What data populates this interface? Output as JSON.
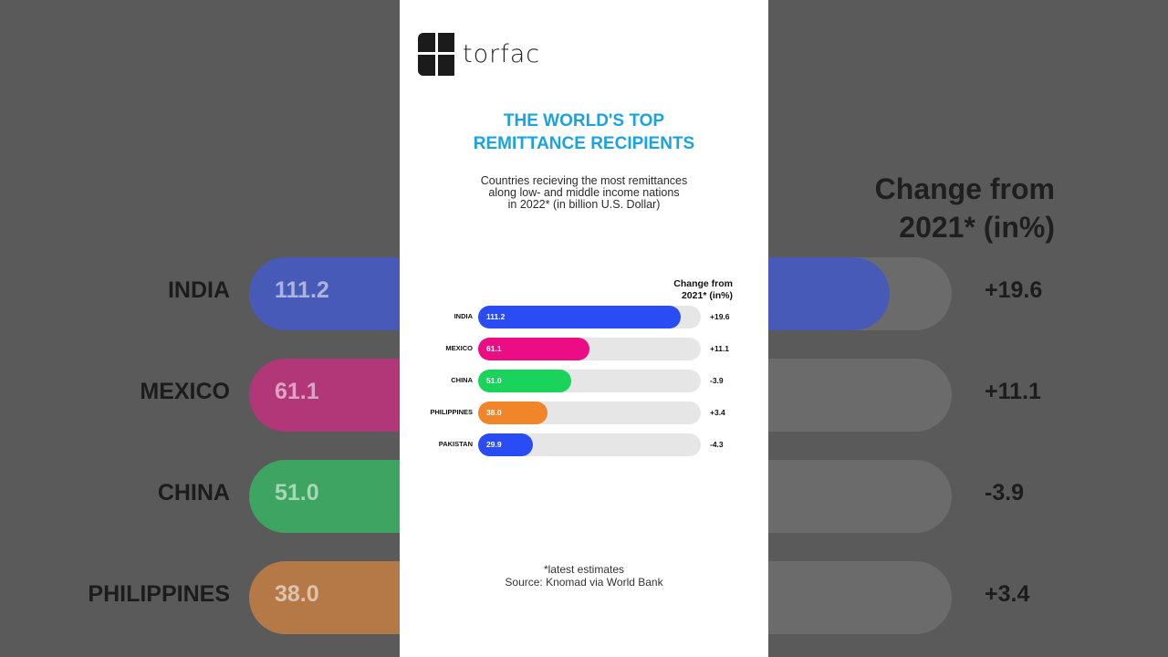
{
  "brand": {
    "name": "torfac"
  },
  "title_lines": [
    "THE WORLD'S TOP",
    "REMITTANCE RECIPIENTS"
  ],
  "subtitle_lines": [
    "Countries recieving the most remittances",
    "along low- and middle income nations",
    "in 2022* (in billion U.S. Dollar)"
  ],
  "change_heading_lines": [
    "Change from",
    "2021* (in%)"
  ],
  "footnote_lines": [
    "*latest estimates",
    "Source: Knomad via World Bank"
  ],
  "colors": {
    "title": "#1aa3e0",
    "track": "#e6e6e6",
    "bars": [
      "#2a4cf5",
      "#ec0c83",
      "#19d35a",
      "#f0852a",
      "#2a4cf5"
    ]
  },
  "chart_data": {
    "type": "bar",
    "orientation": "horizontal",
    "categories": [
      "INDIA",
      "MEXICO",
      "CHINA",
      "PHILIPPINES",
      "PAKISTAN"
    ],
    "values": [
      111.2,
      61.1,
      51.0,
      38.0,
      29.9
    ],
    "value_labels": [
      "111.2",
      "61.1",
      "51.0",
      "38.0",
      "29.9"
    ],
    "change_labels": [
      "+19.6",
      "+11.1",
      "-3.9",
      "+3.4",
      "-4.3"
    ],
    "xlim": [
      0,
      122
    ],
    "grid": false,
    "legend": "none"
  }
}
